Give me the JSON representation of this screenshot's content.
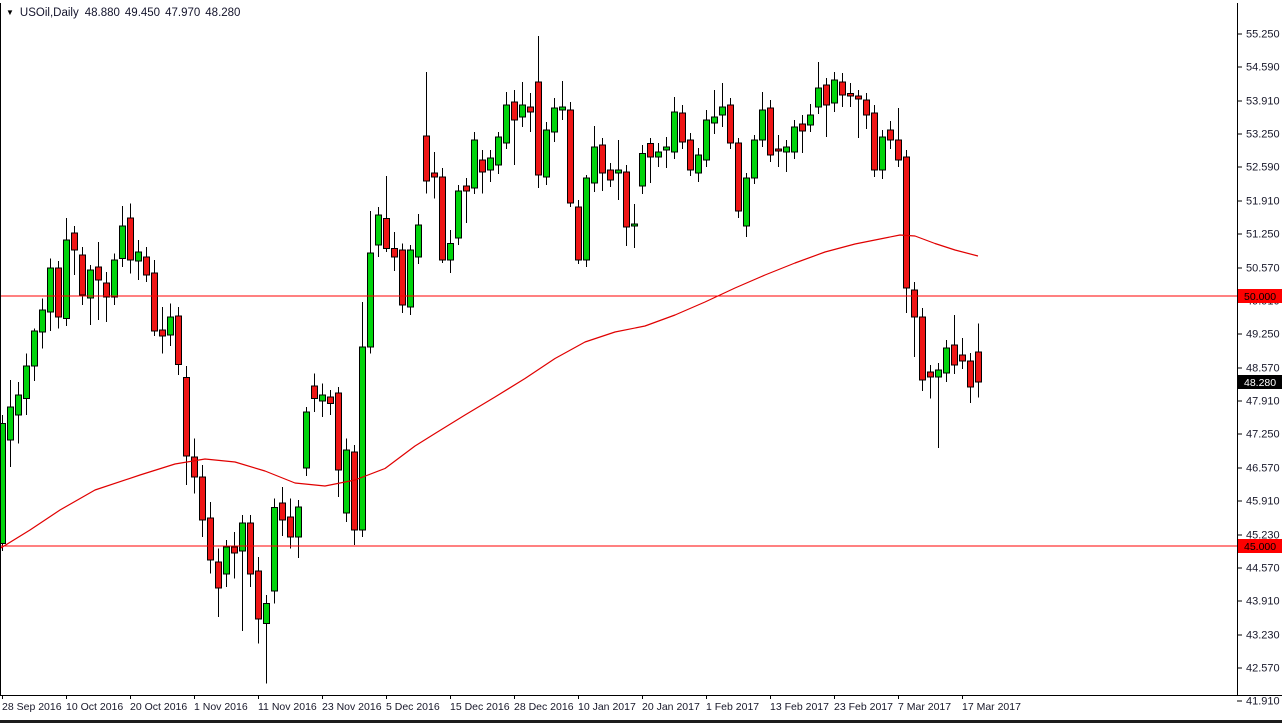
{
  "quote_bar": {
    "symbol_period": "USOil,Daily",
    "open": "48.880",
    "high": "49.450",
    "low": "47.970",
    "close": "48.280"
  },
  "colors": {
    "up_candle": "#00d40c",
    "down_candle": "#ef1515",
    "candle_border": "#000000",
    "level_line": "#ff0000",
    "ma_line": "#e00000",
    "axis_text": "#18182a",
    "axis_line": "#000000",
    "tag_50_bg": "#ff0000",
    "tag_50_fg": "#000000",
    "tag_45_bg": "#ff0000",
    "tag_45_fg": "#000000",
    "tag_last_bg": "#000000",
    "tag_last_fg": "#ffffff",
    "background": "#ffffff"
  },
  "y_axis": {
    "tick_labels": [
      "55.250",
      "54.590",
      "53.910",
      "53.250",
      "52.590",
      "51.910",
      "51.250",
      "50.570",
      "49.910",
      "49.250",
      "48.570",
      "47.910",
      "47.250",
      "46.570",
      "45.910",
      "45.230",
      "44.570",
      "43.910",
      "43.230",
      "42.570",
      "41.910"
    ],
    "tick_values": [
      55.25,
      54.59,
      53.91,
      53.25,
      52.59,
      51.91,
      51.25,
      50.57,
      49.91,
      49.25,
      48.57,
      47.91,
      47.25,
      46.57,
      45.91,
      45.23,
      44.57,
      43.91,
      43.23,
      42.57,
      41.91
    ],
    "price_tags": [
      {
        "name": "level-50",
        "label": "50.000",
        "value": 50.0,
        "bg": "#ff0000",
        "fg": "#000000"
      },
      {
        "name": "level-45",
        "label": "45.000",
        "value": 45.0,
        "bg": "#ff0000",
        "fg": "#000000"
      },
      {
        "name": "last-price",
        "label": "48.280",
        "value": 48.28,
        "bg": "#000000",
        "fg": "#ffffff"
      }
    ]
  },
  "x_axis": {
    "tick_labels": [
      {
        "index": 0,
        "text": "28 Sep 2016"
      },
      {
        "index": 8,
        "text": "10 Oct 2016"
      },
      {
        "index": 16,
        "text": "20 Oct 2016"
      },
      {
        "index": 24,
        "text": "1 Nov 2016"
      },
      {
        "index": 32,
        "text": "11 Nov 2016"
      },
      {
        "index": 40,
        "text": "23 Nov 2016"
      },
      {
        "index": 48,
        "text": "5 Dec 2016"
      },
      {
        "index": 56,
        "text": "15 Dec 2016"
      },
      {
        "index": 64,
        "text": "28 Dec 2016"
      },
      {
        "index": 72,
        "text": "10 Jan 2017"
      },
      {
        "index": 80,
        "text": "20 Jan 2017"
      },
      {
        "index": 88,
        "text": "1 Feb 2017"
      },
      {
        "index": 96,
        "text": "13 Feb 2017"
      },
      {
        "index": 104,
        "text": "23 Feb 2017"
      },
      {
        "index": 112,
        "text": "7 Mar 2017"
      },
      {
        "index": 120,
        "text": "17 Mar 2017"
      }
    ]
  },
  "chart_data": {
    "type": "candlestick",
    "title": "USOil,Daily",
    "symbol": "USOil",
    "timeframe": "Daily",
    "ylim": [
      41.65,
      55.55
    ],
    "grid": false,
    "legend": "none",
    "levels": [
      {
        "price": 50.0,
        "color": "#ff0000",
        "label": "50.000"
      },
      {
        "price": 45.0,
        "color": "#ff0000",
        "label": "45.000"
      }
    ],
    "last_price": 48.28,
    "partial_left_wick": {
      "from": 44.58,
      "to": 43.92
    },
    "moving_average": {
      "name": "red moving average",
      "color": "#e00000",
      "points": [
        [
          0,
          44.95
        ],
        [
          30,
          45.32
        ],
        [
          60,
          45.72
        ],
        [
          95,
          46.12
        ],
        [
          140,
          46.42
        ],
        [
          175,
          46.64
        ],
        [
          205,
          46.74
        ],
        [
          235,
          46.68
        ],
        [
          265,
          46.5
        ],
        [
          295,
          46.26
        ],
        [
          325,
          46.2
        ],
        [
          355,
          46.32
        ],
        [
          385,
          46.55
        ],
        [
          415,
          47.0
        ],
        [
          435,
          47.25
        ],
        [
          465,
          47.62
        ],
        [
          495,
          47.98
        ],
        [
          525,
          48.35
        ],
        [
          555,
          48.75
        ],
        [
          585,
          49.08
        ],
        [
          615,
          49.28
        ],
        [
          645,
          49.4
        ],
        [
          675,
          49.62
        ],
        [
          705,
          49.88
        ],
        [
          735,
          50.16
        ],
        [
          765,
          50.42
        ],
        [
          795,
          50.66
        ],
        [
          825,
          50.88
        ],
        [
          855,
          51.04
        ],
        [
          880,
          51.14
        ],
        [
          900,
          51.22
        ],
        [
          915,
          51.2
        ],
        [
          935,
          51.05
        ],
        [
          955,
          50.92
        ],
        [
          978,
          50.8
        ]
      ]
    },
    "candles_format": [
      "open",
      "high",
      "low",
      "close"
    ],
    "candles": [
      [
        45.05,
        47.62,
        44.9,
        47.45
      ],
      [
        47.12,
        48.32,
        46.58,
        47.78
      ],
      [
        47.62,
        48.28,
        47.05,
        48.02
      ],
      [
        47.95,
        48.85,
        47.62,
        48.6
      ],
      [
        48.6,
        49.35,
        48.3,
        49.3
      ],
      [
        49.28,
        49.95,
        48.95,
        49.72
      ],
      [
        49.68,
        50.75,
        49.3,
        50.56
      ],
      [
        50.56,
        50.7,
        49.35,
        49.58
      ],
      [
        49.55,
        51.56,
        49.4,
        51.12
      ],
      [
        51.26,
        51.4,
        50.42,
        50.92
      ],
      [
        50.82,
        50.98,
        49.82,
        50.02
      ],
      [
        49.96,
        50.62,
        49.42,
        50.52
      ],
      [
        50.58,
        51.08,
        49.52,
        50.32
      ],
      [
        50.26,
        50.48,
        49.48,
        49.98
      ],
      [
        49.98,
        50.85,
        49.82,
        50.72
      ],
      [
        50.75,
        51.8,
        50.58,
        51.4
      ],
      [
        51.56,
        51.85,
        50.45,
        50.72
      ],
      [
        50.7,
        51.12,
        50.32,
        50.88
      ],
      [
        50.78,
        50.98,
        50.28,
        50.42
      ],
      [
        50.46,
        50.72,
        49.2,
        49.3
      ],
      [
        49.32,
        49.78,
        48.85,
        49.2
      ],
      [
        49.22,
        49.85,
        49.0,
        49.58
      ],
      [
        49.6,
        49.78,
        48.42,
        48.63
      ],
      [
        48.37,
        48.6,
        46.22,
        46.8
      ],
      [
        46.78,
        47.15,
        46.05,
        46.38
      ],
      [
        46.38,
        46.62,
        45.18,
        45.52
      ],
      [
        45.56,
        45.88,
        44.45,
        44.72
      ],
      [
        44.68,
        44.95,
        43.58,
        44.16
      ],
      [
        44.44,
        45.12,
        44.18,
        44.98
      ],
      [
        44.98,
        45.28,
        44.35,
        44.86
      ],
      [
        44.9,
        45.62,
        43.3,
        45.46
      ],
      [
        45.46,
        45.62,
        44.18,
        44.44
      ],
      [
        44.5,
        44.78,
        43.05,
        43.54
      ],
      [
        43.45,
        44.02,
        42.25,
        43.85
      ],
      [
        44.1,
        45.95,
        43.85,
        45.77
      ],
      [
        45.86,
        46.18,
        45.2,
        45.52
      ],
      [
        45.58,
        45.95,
        44.95,
        45.18
      ],
      [
        45.18,
        45.92,
        44.76,
        45.78
      ],
      [
        46.56,
        47.78,
        46.4,
        47.68
      ],
      [
        48.2,
        48.45,
        47.68,
        47.95
      ],
      [
        47.9,
        48.25,
        47.58,
        48.02
      ],
      [
        47.98,
        48.12,
        47.62,
        47.85
      ],
      [
        48.06,
        48.18,
        45.98,
        46.52
      ],
      [
        45.66,
        47.15,
        45.48,
        46.92
      ],
      [
        46.88,
        47.02,
        45.02,
        45.32
      ],
      [
        45.32,
        49.88,
        45.18,
        48.98
      ],
      [
        48.98,
        51.7,
        48.85,
        50.86
      ],
      [
        51.02,
        51.78,
        50.78,
        51.62
      ],
      [
        51.55,
        52.4,
        50.88,
        50.95
      ],
      [
        50.95,
        51.28,
        50.5,
        50.78
      ],
      [
        50.92,
        51.05,
        49.66,
        49.82
      ],
      [
        49.78,
        51.02,
        49.62,
        50.92
      ],
      [
        50.78,
        51.64,
        50.64,
        51.42
      ],
      [
        53.2,
        54.48,
        52.05,
        52.3
      ],
      [
        52.46,
        52.88,
        51.95,
        52.38
      ],
      [
        52.38,
        52.56,
        50.66,
        50.72
      ],
      [
        50.72,
        51.32,
        50.46,
        51.05
      ],
      [
        51.16,
        52.22,
        51.02,
        52.1
      ],
      [
        52.2,
        52.36,
        51.46,
        52.1
      ],
      [
        52.16,
        53.28,
        52.04,
        53.12
      ],
      [
        52.72,
        52.92,
        52.05,
        52.48
      ],
      [
        52.52,
        52.92,
        52.28,
        52.76
      ],
      [
        52.62,
        53.28,
        52.44,
        53.18
      ],
      [
        53.06,
        54.08,
        52.94,
        53.82
      ],
      [
        53.88,
        54.12,
        52.62,
        53.52
      ],
      [
        53.58,
        54.28,
        53.38,
        53.82
      ],
      [
        53.78,
        54.06,
        53.28,
        53.68
      ],
      [
        54.28,
        55.2,
        52.16,
        52.42
      ],
      [
        52.38,
        53.48,
        52.22,
        53.32
      ],
      [
        53.28,
        53.96,
        53.08,
        53.76
      ],
      [
        53.72,
        54.3,
        53.52,
        53.78
      ],
      [
        53.72,
        53.88,
        51.78,
        51.86
      ],
      [
        51.78,
        51.92,
        50.64,
        50.72
      ],
      [
        50.72,
        52.42,
        50.58,
        52.36
      ],
      [
        52.26,
        53.4,
        52.08,
        52.98
      ],
      [
        53.02,
        53.16,
        52.1,
        52.46
      ],
      [
        52.52,
        52.66,
        52.18,
        52.32
      ],
      [
        52.46,
        53.12,
        51.92,
        52.52
      ],
      [
        52.48,
        52.62,
        51.0,
        51.38
      ],
      [
        51.4,
        51.84,
        50.96,
        51.44
      ],
      [
        52.2,
        53.02,
        52.04,
        52.85
      ],
      [
        53.05,
        53.16,
        52.26,
        52.78
      ],
      [
        52.78,
        53.06,
        52.58,
        52.88
      ],
      [
        52.92,
        53.18,
        52.56,
        52.98
      ],
      [
        52.88,
        53.98,
        52.74,
        53.68
      ],
      [
        53.66,
        53.82,
        52.94,
        53.08
      ],
      [
        53.12,
        53.26,
        52.4,
        52.52
      ],
      [
        52.46,
        52.96,
        52.28,
        52.82
      ],
      [
        52.72,
        53.72,
        52.58,
        53.52
      ],
      [
        53.46,
        54.12,
        53.24,
        53.58
      ],
      [
        53.62,
        54.26,
        53.38,
        53.78
      ],
      [
        53.82,
        53.96,
        52.94,
        53.06
      ],
      [
        53.06,
        53.16,
        51.56,
        51.7
      ],
      [
        51.4,
        52.46,
        51.18,
        52.36
      ],
      [
        52.36,
        53.22,
        52.24,
        53.12
      ],
      [
        53.12,
        54.08,
        52.98,
        53.72
      ],
      [
        53.76,
        53.92,
        52.68,
        52.82
      ],
      [
        52.94,
        53.22,
        52.58,
        52.9
      ],
      [
        52.88,
        53.12,
        52.48,
        52.98
      ],
      [
        52.88,
        53.52,
        52.74,
        53.38
      ],
      [
        53.44,
        53.62,
        52.86,
        53.3
      ],
      [
        53.42,
        53.84,
        53.28,
        53.62
      ],
      [
        53.78,
        54.68,
        53.64,
        54.16
      ],
      [
        54.22,
        54.36,
        53.18,
        53.82
      ],
      [
        53.86,
        54.48,
        53.68,
        54.32
      ],
      [
        54.28,
        54.46,
        53.78,
        54.02
      ],
      [
        54.05,
        54.26,
        53.78,
        54.0
      ],
      [
        54.0,
        54.12,
        53.16,
        53.94
      ],
      [
        53.92,
        54.06,
        53.34,
        53.62
      ],
      [
        53.66,
        53.82,
        52.38,
        52.52
      ],
      [
        52.52,
        53.32,
        52.34,
        53.18
      ],
      [
        53.32,
        53.5,
        52.94,
        53.12
      ],
      [
        53.12,
        53.76,
        52.58,
        52.72
      ],
      [
        52.78,
        52.92,
        49.66,
        50.16
      ],
      [
        50.12,
        50.28,
        48.78,
        49.58
      ],
      [
        49.58,
        49.76,
        48.1,
        48.32
      ],
      [
        48.48,
        48.62,
        47.95,
        48.38
      ],
      [
        48.38,
        48.66,
        46.96,
        48.52
      ],
      [
        48.46,
        49.12,
        48.28,
        48.96
      ],
      [
        49.02,
        49.62,
        48.44,
        48.62
      ],
      [
        48.82,
        49.16,
        48.54,
        48.7
      ],
      [
        48.7,
        48.86,
        47.86,
        48.18
      ],
      [
        48.88,
        49.45,
        47.97,
        48.28
      ]
    ]
  }
}
